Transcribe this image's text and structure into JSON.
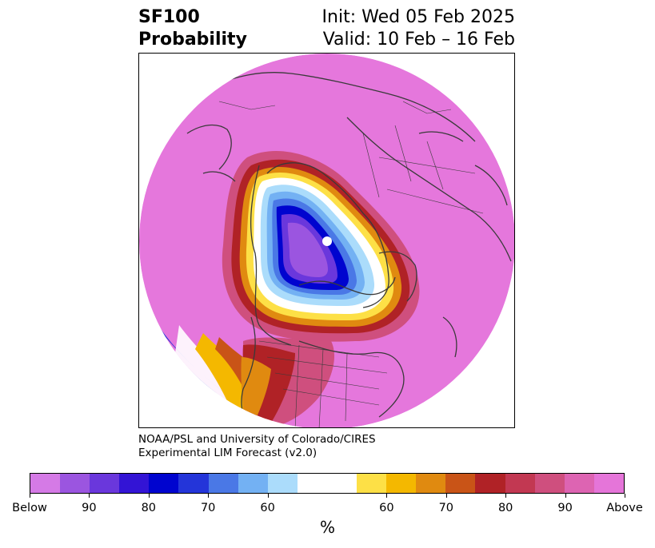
{
  "header": {
    "title_line1": "SF100",
    "title_line2": "Probability",
    "init_text": "Init: Wed 05 Feb 2025",
    "valid_text": "Valid: 10 Feb – 16 Feb"
  },
  "credit": {
    "line1": "NOAA/PSL and University of Colorado/CIRES",
    "line2": "Experimental LIM Forecast (v2.0)"
  },
  "colorbar": {
    "segments": [
      {
        "color": "#d57ae6"
      },
      {
        "color": "#9b55e0"
      },
      {
        "color": "#6a37dc"
      },
      {
        "color": "#3314d5"
      },
      {
        "color": "#0004cf"
      },
      {
        "color": "#2435d9"
      },
      {
        "color": "#4a78e6"
      },
      {
        "color": "#73b1f3"
      },
      {
        "color": "#abdcfb"
      },
      {
        "color": "#ffffff",
        "wide": true
      },
      {
        "color": "#fde046"
      },
      {
        "color": "#f4b800"
      },
      {
        "color": "#e08a10"
      },
      {
        "color": "#c95417"
      },
      {
        "color": "#b02226"
      },
      {
        "color": "#c23852"
      },
      {
        "color": "#cf4f7e"
      },
      {
        "color": "#dd64b2"
      },
      {
        "color": "#e575d9"
      }
    ],
    "tick_labels": [
      "Below",
      "90",
      "80",
      "70",
      "60",
      "60",
      "70",
      "80",
      "90",
      "Above"
    ],
    "unit": "%"
  },
  "map": {
    "projection": "north-polar-stereographic",
    "background_field_color": "#e577dc",
    "pole_marker_color": "#ffffff",
    "coastline_color": "#3a3a3a"
  }
}
